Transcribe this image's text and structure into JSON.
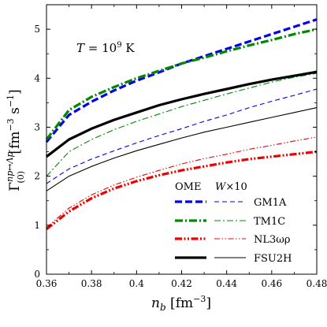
{
  "chart_data": {
    "type": "line",
    "xlabel": "n_b [fm^-3]",
    "ylabel": "Γ^{np↔Λp}_(0) [fm^-3 s^-1]",
    "xlim": [
      0.36,
      0.48
    ],
    "ylim": [
      0,
      5.5
    ],
    "xticks": [
      "0.36",
      "0.38",
      "0.4",
      "0.42",
      "0.44",
      "0.46",
      "0.48"
    ],
    "yticks": [
      "0",
      "1",
      "2",
      "3",
      "4",
      "5"
    ],
    "annotation": "T = 10^9 K",
    "legend": {
      "header_left": "OME",
      "header_right": "W×10",
      "placement": "bottom-right",
      "entries": [
        "GM1A",
        "TM1C",
        "NL3ωρ",
        "FSU2H"
      ]
    },
    "x": [
      0.36,
      0.37,
      0.38,
      0.39,
      0.4,
      0.41,
      0.42,
      0.43,
      0.44,
      0.45,
      0.46,
      0.47,
      0.48
    ],
    "series": [
      {
        "name": "GM1A",
        "model": "OME",
        "color": "#0000ee",
        "style": "dashed-thick",
        "values": [
          2.7,
          3.25,
          3.52,
          3.75,
          3.95,
          4.12,
          4.3,
          4.45,
          4.6,
          4.75,
          4.9,
          5.05,
          5.2
        ]
      },
      {
        "name": "GM1A",
        "model": "W×10",
        "color": "#0000ee",
        "style": "dashed-thin",
        "values": [
          1.85,
          2.15,
          2.35,
          2.52,
          2.68,
          2.83,
          2.97,
          3.12,
          3.25,
          3.4,
          3.53,
          3.65,
          3.78
        ]
      },
      {
        "name": "TM1C",
        "model": "OME",
        "color": "#008800",
        "style": "dashdot-thick",
        "values": [
          2.75,
          3.35,
          3.62,
          3.82,
          4.0,
          4.15,
          4.3,
          4.42,
          4.55,
          4.67,
          4.78,
          4.9,
          5.0
        ]
      },
      {
        "name": "TM1C",
        "model": "W×10",
        "color": "#008800",
        "style": "dashdot-thin",
        "values": [
          2.0,
          2.5,
          2.75,
          2.95,
          3.12,
          3.27,
          3.42,
          3.55,
          3.68,
          3.8,
          3.92,
          4.02,
          4.1
        ]
      },
      {
        "name": "NL3ωρ",
        "model": "OME",
        "color": "#ee0000",
        "style": "dashdotdot-thick",
        "values": [
          0.92,
          1.28,
          1.55,
          1.75,
          1.9,
          2.02,
          2.12,
          2.2,
          2.28,
          2.35,
          2.4,
          2.45,
          2.5
        ]
      },
      {
        "name": "NL3ωρ",
        "model": "W×10",
        "color": "#ee0000",
        "style": "dashdotdot-thin",
        "values": [
          0.95,
          1.35,
          1.62,
          1.82,
          1.98,
          2.12,
          2.25,
          2.36,
          2.45,
          2.55,
          2.63,
          2.72,
          2.8
        ]
      },
      {
        "name": "FSU2H",
        "model": "OME",
        "color": "#000000",
        "style": "solid-thick",
        "values": [
          2.4,
          2.75,
          2.97,
          3.15,
          3.3,
          3.45,
          3.57,
          3.68,
          3.78,
          3.88,
          3.97,
          4.05,
          4.13
        ]
      },
      {
        "name": "FSU2H",
        "model": "W×10",
        "color": "#000000",
        "style": "solid-thin",
        "values": [
          1.7,
          2.0,
          2.2,
          2.37,
          2.52,
          2.65,
          2.78,
          2.9,
          3.0,
          3.1,
          3.2,
          3.3,
          3.4
        ]
      }
    ]
  }
}
